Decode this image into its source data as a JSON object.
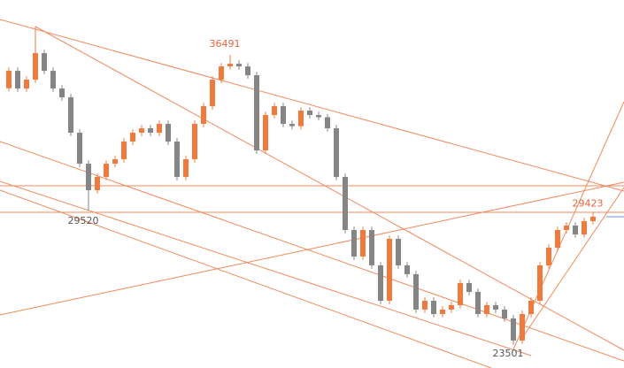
{
  "chart_data": {
    "type": "candlestick",
    "up_color": "#f07a3c",
    "down_color": "#858585",
    "ylim": [
      22470,
      38950
    ],
    "open": [
      35000,
      35778,
      34986,
      35382,
      36570,
      35778,
      34986,
      34590,
      33006,
      31620,
      30432,
      31026,
      31620,
      31818,
      32610,
      33006,
      33204,
      33006,
      33402,
      32610,
      31026,
      31818,
      33402,
      34194,
      35382,
      35976,
      36095,
      35976,
      35580,
      32214,
      33798,
      34194,
      33402,
      33300,
      33996,
      33798,
      33700,
      33204,
      31026,
      28650,
      27462,
      28650,
      27066,
      25482,
      28254,
      27066,
      26670,
      25086,
      25482,
      24888,
      25086,
      25284,
      26274,
      25878,
      24888,
      25284,
      25086,
      24690,
      23700,
      24888,
      25482,
      27066,
      27858,
      28650,
      28848,
      28452,
      29046
    ],
    "close": [
      35778,
      34986,
      35382,
      36570,
      35778,
      34986,
      34590,
      33006,
      31620,
      30432,
      31026,
      31620,
      31818,
      32610,
      33006,
      33204,
      33006,
      33402,
      32610,
      31026,
      31818,
      33402,
      34194,
      35382,
      35976,
      36095,
      35976,
      35580,
      32214,
      33798,
      34194,
      33402,
      33300,
      33996,
      33798,
      33700,
      33204,
      31026,
      28650,
      27462,
      28650,
      27066,
      25482,
      28254,
      27066,
      26670,
      25086,
      25482,
      24888,
      25086,
      25284,
      26274,
      25878,
      24888,
      25284,
      25086,
      24690,
      23700,
      24888,
      25482,
      27066,
      27858,
      28650,
      28848,
      28452,
      29046,
      29244
    ],
    "high": [
      35928,
      35928,
      35532,
      37750,
      36720,
      35928,
      35136,
      34740,
      33156,
      31770,
      31176,
      31770,
      31968,
      32760,
      33156,
      33354,
      33354,
      33552,
      33552,
      32760,
      31968,
      33552,
      34344,
      35532,
      36126,
      36491,
      36245,
      36126,
      35730,
      33948,
      34344,
      34344,
      33552,
      34146,
      34146,
      33948,
      33850,
      33354,
      31176,
      28800,
      28800,
      28800,
      27216,
      28404,
      28404,
      27216,
      26820,
      25632,
      25632,
      25236,
      25434,
      26424,
      26424,
      26028,
      25434,
      25434,
      25236,
      24840,
      25038,
      25632,
      27216,
      28008,
      28800,
      28998,
      28998,
      29196,
      29423
    ],
    "low": [
      34850,
      34836,
      34836,
      35232,
      35628,
      34836,
      34440,
      32856,
      31470,
      29520,
      30282,
      30876,
      31470,
      31668,
      32460,
      32856,
      32856,
      32856,
      32460,
      30876,
      30876,
      31668,
      33252,
      34044,
      35232,
      35826,
      35826,
      35430,
      32064,
      32064,
      33648,
      33252,
      33150,
      33150,
      33648,
      33550,
      33054,
      30876,
      28500,
      27312,
      27312,
      26916,
      25332,
      25332,
      26916,
      26520,
      24936,
      24936,
      24738,
      24738,
      24936,
      25134,
      25728,
      24738,
      24738,
      24936,
      24540,
      23501,
      23550,
      24738,
      25332,
      26916,
      27708,
      28500,
      28302,
      28302,
      28896
    ],
    "annotations": [
      {
        "text": 36491,
        "color": "#e8643c"
      },
      {
        "text": 29520,
        "color": "#555555"
      },
      {
        "text": 29423,
        "color": "#e8643c"
      },
      {
        "text": 23501,
        "color": "#555555"
      }
    ]
  }
}
